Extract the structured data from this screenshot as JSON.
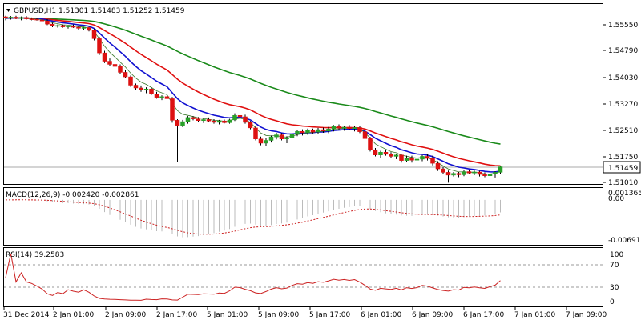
{
  "header": {
    "symbol_line": "GBPUSD,H1  1.51301  1.51483  1.51252  1.51459"
  },
  "price_axis": {
    "labels": [
      "1.55550",
      "1.54790",
      "1.54030",
      "1.53270",
      "1.52510",
      "1.51750",
      "1.51010"
    ],
    "current_price": "1.51459"
  },
  "macd": {
    "title": "MACD(12,26,9) -0.002420 -0.002861",
    "axis_labels": [
      "0.001365",
      "0.00",
      "-0.006916"
    ]
  },
  "rsi": {
    "title": "RSI(14) 39.2583",
    "axis_labels": [
      "100",
      "70",
      "30",
      "0"
    ]
  },
  "time_axis": {
    "labels": [
      "31 Dec 2014",
      "2 Jan 01:00",
      "2 Jan 09:00",
      "2 Jan 17:00",
      "5 Jan 01:00",
      "5 Jan 09:00",
      "5 Jan 17:00",
      "6 Jan 01:00",
      "6 Jan 09:00",
      "6 Jan 17:00",
      "7 Jan 01:00",
      "7 Jan 09:00"
    ]
  },
  "colors": {
    "bull": "#28a028",
    "bear": "#dd1111",
    "ema_red": "#e01010",
    "ema_blue": "#1010d0",
    "ema_green": "#1a8a1a",
    "ma_thin": "#3a7a2a",
    "signal": "#cc2222",
    "hist": "#bbbbbb",
    "rsi": "#cc2222",
    "level": "#999999"
  },
  "chart_data": {
    "type": "candlestick",
    "symbol": "GBPUSD",
    "timeframe": "H1",
    "price_range": [
      1.5092,
      1.5582
    ],
    "candles": [
      [
        1.5578,
        1.5581,
        1.5568,
        1.5574
      ],
      [
        1.5574,
        1.558,
        1.557,
        1.5577
      ],
      [
        1.5577,
        1.5581,
        1.5571,
        1.5573
      ],
      [
        1.5573,
        1.5579,
        1.5568,
        1.5576
      ],
      [
        1.5576,
        1.558,
        1.557,
        1.5572
      ],
      [
        1.5572,
        1.5576,
        1.5568,
        1.5571
      ],
      [
        1.5571,
        1.5575,
        1.5567,
        1.5569
      ],
      [
        1.5569,
        1.5574,
        1.5563,
        1.5566
      ],
      [
        1.5566,
        1.5571,
        1.5554,
        1.5557
      ],
      [
        1.5557,
        1.5561,
        1.5548,
        1.5551
      ],
      [
        1.5551,
        1.5556,
        1.5547,
        1.5553
      ],
      [
        1.5553,
        1.5556,
        1.5547,
        1.5549
      ],
      [
        1.5549,
        1.5553,
        1.5544,
        1.5552
      ],
      [
        1.5552,
        1.5556,
        1.5546,
        1.5548
      ],
      [
        1.5548,
        1.5551,
        1.5541,
        1.5545
      ],
      [
        1.5545,
        1.5549,
        1.554,
        1.5547
      ],
      [
        1.5547,
        1.5549,
        1.5536,
        1.5539
      ],
      [
        1.5539,
        1.5543,
        1.551,
        1.5515
      ],
      [
        1.5515,
        1.552,
        1.5468,
        1.5474
      ],
      [
        1.5474,
        1.548,
        1.5445,
        1.545
      ],
      [
        1.545,
        1.5458,
        1.5436,
        1.5441
      ],
      [
        1.5441,
        1.5447,
        1.543,
        1.5435
      ],
      [
        1.5435,
        1.5441,
        1.5412,
        1.5418
      ],
      [
        1.5418,
        1.5424,
        1.5401,
        1.5405
      ],
      [
        1.5405,
        1.5409,
        1.5376,
        1.5381
      ],
      [
        1.5381,
        1.5386,
        1.5368,
        1.5373
      ],
      [
        1.5373,
        1.538,
        1.5362,
        1.5367
      ],
      [
        1.5367,
        1.5375,
        1.5358,
        1.537
      ],
      [
        1.537,
        1.5374,
        1.5353,
        1.5356
      ],
      [
        1.5356,
        1.5362,
        1.5342,
        1.5346
      ],
      [
        1.5346,
        1.5352,
        1.5338,
        1.5348
      ],
      [
        1.5348,
        1.5351,
        1.5338,
        1.5342
      ],
      [
        1.5342,
        1.5347,
        1.5273,
        1.528
      ],
      [
        1.528,
        1.5283,
        1.516,
        1.5265
      ],
      [
        1.5265,
        1.5281,
        1.526,
        1.5276
      ],
      [
        1.5276,
        1.5292,
        1.527,
        1.5288
      ],
      [
        1.5288,
        1.5292,
        1.528,
        1.5284
      ],
      [
        1.5284,
        1.5289,
        1.5276,
        1.5279
      ],
      [
        1.5279,
        1.5286,
        1.5272,
        1.5282
      ],
      [
        1.5282,
        1.5288,
        1.5275,
        1.5278
      ],
      [
        1.5278,
        1.5283,
        1.527,
        1.5274
      ],
      [
        1.5274,
        1.5281,
        1.5268,
        1.5278
      ],
      [
        1.5278,
        1.5282,
        1.5271,
        1.5273
      ],
      [
        1.5273,
        1.5284,
        1.527,
        1.5281
      ],
      [
        1.5281,
        1.53,
        1.5278,
        1.5294
      ],
      [
        1.5294,
        1.5304,
        1.5285,
        1.529
      ],
      [
        1.529,
        1.5296,
        1.527,
        1.5274
      ],
      [
        1.5274,
        1.5278,
        1.5254,
        1.5258
      ],
      [
        1.5258,
        1.5264,
        1.5222,
        1.5226
      ],
      [
        1.5226,
        1.5233,
        1.5208,
        1.5214
      ],
      [
        1.5214,
        1.5228,
        1.5206,
        1.5222
      ],
      [
        1.5222,
        1.5236,
        1.5216,
        1.5232
      ],
      [
        1.5232,
        1.5244,
        1.5225,
        1.5238
      ],
      [
        1.5238,
        1.5243,
        1.5222,
        1.5226
      ],
      [
        1.5226,
        1.5234,
        1.5214,
        1.5229
      ],
      [
        1.5229,
        1.5244,
        1.5224,
        1.524
      ],
      [
        1.524,
        1.5253,
        1.5234,
        1.5248
      ],
      [
        1.5248,
        1.5254,
        1.5236,
        1.5244
      ],
      [
        1.5244,
        1.5256,
        1.5238,
        1.5251
      ],
      [
        1.5251,
        1.5256,
        1.5242,
        1.5246
      ],
      [
        1.5246,
        1.5258,
        1.524,
        1.5253
      ],
      [
        1.5253,
        1.5259,
        1.5244,
        1.5249
      ],
      [
        1.5249,
        1.5261,
        1.5243,
        1.5255
      ],
      [
        1.5255,
        1.5266,
        1.5248,
        1.5262
      ],
      [
        1.5262,
        1.5268,
        1.5252,
        1.5257
      ],
      [
        1.5257,
        1.5264,
        1.525,
        1.526
      ],
      [
        1.526,
        1.5266,
        1.5251,
        1.5256
      ],
      [
        1.5256,
        1.5263,
        1.5248,
        1.5259
      ],
      [
        1.5259,
        1.5263,
        1.5243,
        1.5247
      ],
      [
        1.5247,
        1.5252,
        1.5222,
        1.5227
      ],
      [
        1.5227,
        1.5232,
        1.519,
        1.5195
      ],
      [
        1.5195,
        1.52,
        1.5176,
        1.518
      ],
      [
        1.518,
        1.5192,
        1.5172,
        1.5188
      ],
      [
        1.5188,
        1.5194,
        1.5178,
        1.5182
      ],
      [
        1.5182,
        1.5188,
        1.517,
        1.5176
      ],
      [
        1.5176,
        1.5184,
        1.5168,
        1.518
      ],
      [
        1.518,
        1.5183,
        1.5158,
        1.5164
      ],
      [
        1.5164,
        1.5178,
        1.516,
        1.5172
      ],
      [
        1.5172,
        1.5178,
        1.5158,
        1.5165
      ],
      [
        1.5165,
        1.5172,
        1.5152,
        1.5168
      ],
      [
        1.5168,
        1.518,
        1.5162,
        1.5176
      ],
      [
        1.5176,
        1.5182,
        1.5164,
        1.517
      ],
      [
        1.517,
        1.5178,
        1.515,
        1.5156
      ],
      [
        1.5156,
        1.5162,
        1.5134,
        1.514
      ],
      [
        1.514,
        1.5146,
        1.5124,
        1.513
      ],
      [
        1.513,
        1.5135,
        1.51,
        1.5122
      ],
      [
        1.5122,
        1.5131,
        1.5118,
        1.5127
      ],
      [
        1.5127,
        1.5131,
        1.5116,
        1.5123
      ],
      [
        1.5123,
        1.5136,
        1.5119,
        1.5132
      ],
      [
        1.5132,
        1.5138,
        1.5124,
        1.5128
      ],
      [
        1.5128,
        1.5135,
        1.5122,
        1.5131
      ],
      [
        1.5131,
        1.5134,
        1.5118,
        1.5124
      ],
      [
        1.5124,
        1.513,
        1.5116,
        1.512
      ],
      [
        1.512,
        1.5128,
        1.5112,
        1.5125
      ],
      [
        1.5125,
        1.5133,
        1.5115,
        1.513
      ],
      [
        1.513,
        1.5148,
        1.5125,
        1.5146
      ]
    ]
  }
}
